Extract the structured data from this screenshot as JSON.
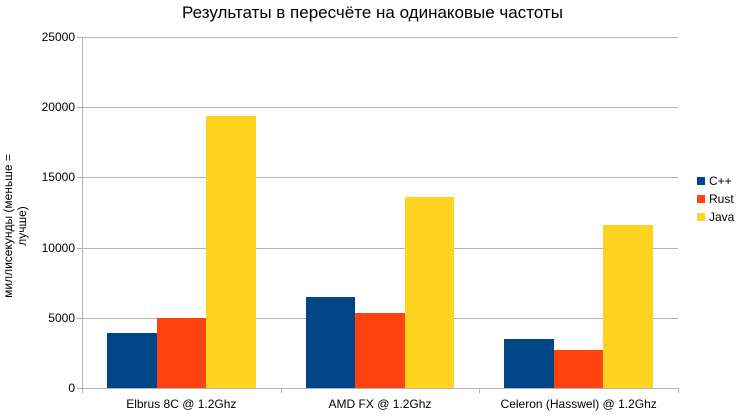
{
  "chart_data": {
    "type": "bar",
    "title": "Результаты в пересчёте на одинаковые частоты",
    "xlabel": "",
    "ylabel": "миллисекунды (меньше = лучше)",
    "ylim": [
      0,
      25000
    ],
    "yticks": [
      "0",
      "5000",
      "10000",
      "15000",
      "20000",
      "25000"
    ],
    "grid": true,
    "legend_position": "right",
    "categories": [
      "Elbrus 8C @ 1.2Ghz",
      "AMD FX @ 1.2Ghz",
      "Celeron (Hasswel) @ 1.2Ghz"
    ],
    "series": [
      {
        "name": "C++",
        "color": "#004586",
        "values": [
          3900,
          6480,
          3490
        ]
      },
      {
        "name": "Rust",
        "color": "#ff420e",
        "values": [
          4980,
          5340,
          2700
        ]
      },
      {
        "name": "Java",
        "color": "#ffd320",
        "values": [
          19400,
          13600,
          11610
        ]
      }
    ]
  }
}
